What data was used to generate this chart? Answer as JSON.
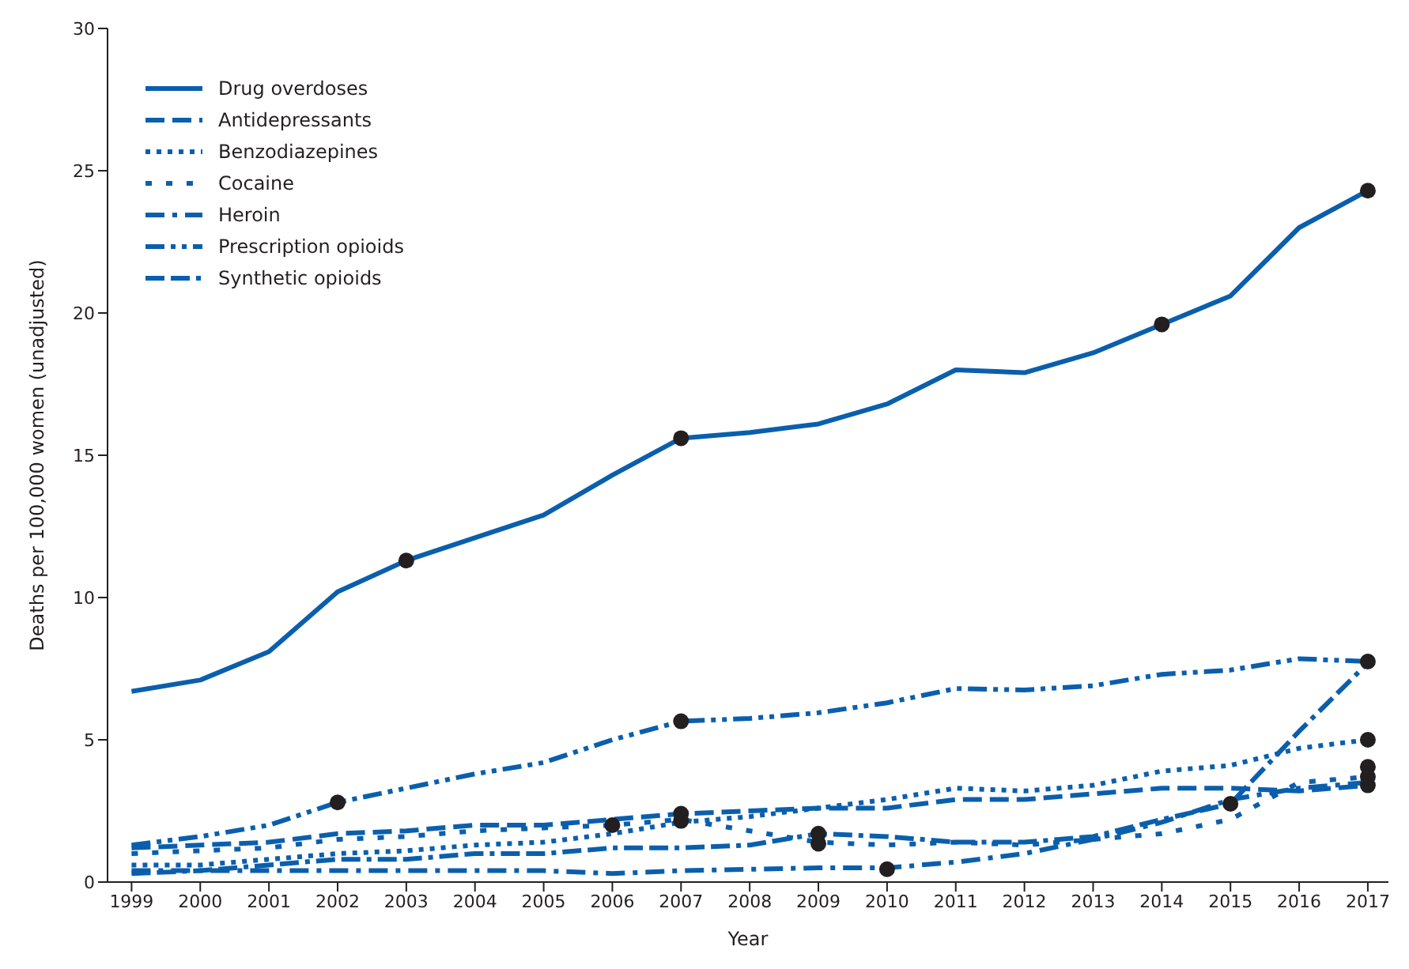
{
  "chart_data": {
    "type": "line",
    "xlabel": "Year",
    "ylabel": "Deaths per 100,000 women (unadjusted)",
    "x": [
      1999,
      2000,
      2001,
      2002,
      2003,
      2004,
      2005,
      2006,
      2007,
      2008,
      2009,
      2010,
      2011,
      2012,
      2013,
      2014,
      2015,
      2016,
      2017
    ],
    "xlim": [
      1998.65,
      2017.3
    ],
    "xticks": [
      1999,
      2000,
      2001,
      2002,
      2003,
      2004,
      2005,
      2006,
      2007,
      2008,
      2009,
      2010,
      2011,
      2012,
      2013,
      2014,
      2015,
      2016,
      2017
    ],
    "ylim": [
      0,
      30
    ],
    "yticks": [
      0,
      5,
      10,
      15,
      20,
      25,
      30
    ],
    "legend": "top left",
    "marker": "none",
    "series": [
      {
        "name": "Drug overdoses",
        "color": "#0a5fad",
        "line_style": "solid",
        "values": [
          6.7,
          7.1,
          8.1,
          10.2,
          11.3,
          12.1,
          12.9,
          14.3,
          15.6,
          15.8,
          16.1,
          16.8,
          18.0,
          17.9,
          18.6,
          19.6,
          20.6,
          23.0,
          24.3
        ]
      },
      {
        "name": "Antidepressants",
        "color": "#0a5fad",
        "line_style": "dashed",
        "values": [
          1.2,
          1.3,
          1.4,
          1.7,
          1.8,
          2.0,
          2.0,
          2.2,
          2.4,
          2.5,
          2.6,
          2.6,
          2.9,
          2.9,
          3.1,
          3.3,
          3.3,
          3.2,
          3.4
        ]
      },
      {
        "name": "Benzodiazepines",
        "color": "#0a5fad",
        "line_style": "dotted",
        "values": [
          0.6,
          0.6,
          0.8,
          1.0,
          1.1,
          1.3,
          1.4,
          1.7,
          2.1,
          2.3,
          2.6,
          2.9,
          3.3,
          3.2,
          3.4,
          3.9,
          4.1,
          4.7,
          5.0
        ]
      },
      {
        "name": "Cocaine",
        "color": "#0a5fad",
        "line_style": "loosedotted",
        "values": [
          1.0,
          1.1,
          1.2,
          1.5,
          1.6,
          1.8,
          1.9,
          2.0,
          2.2,
          1.8,
          1.4,
          1.3,
          1.4,
          1.3,
          1.5,
          1.7,
          2.2,
          3.5,
          3.7
        ]
      },
      {
        "name": "Heroin",
        "color": "#0a5fad",
        "line_style": "dashdot",
        "values": [
          0.4,
          0.4,
          0.4,
          0.4,
          0.4,
          0.4,
          0.4,
          0.3,
          0.4,
          0.45,
          0.5,
          0.5,
          0.7,
          1.0,
          1.5,
          2.1,
          2.9,
          3.3,
          3.5
        ]
      },
      {
        "name": "Prescription opioids",
        "color": "#0a5fad",
        "line_style": "dashdotdot",
        "values": [
          1.3,
          1.6,
          2.0,
          2.8,
          3.3,
          3.8,
          4.2,
          5.0,
          5.65,
          5.75,
          5.95,
          6.3,
          6.8,
          6.75,
          6.9,
          7.3,
          7.45,
          7.85,
          7.75
        ]
      },
      {
        "name": "Synthetic opioids",
        "color": "#0a5fad",
        "line_style": "dashdashdot",
        "values": [
          0.3,
          0.4,
          0.6,
          0.8,
          0.8,
          1.0,
          1.0,
          1.2,
          1.2,
          1.3,
          1.7,
          1.6,
          1.4,
          1.4,
          1.6,
          2.2,
          2.75,
          5.3,
          7.7
        ]
      },
      {
        "type": "scatter",
        "color": "#231f20",
        "marker": "circle",
        "x": [
          2003,
          2007,
          2014,
          2017,
          2002,
          2007,
          2017,
          2006,
          2007,
          2007,
          2009,
          2009,
          2010,
          2015,
          2017,
          2017,
          2017,
          2017
        ],
        "values": [
          11.3,
          15.6,
          19.6,
          24.3,
          2.8,
          5.65,
          7.75,
          2.0,
          2.4,
          2.15,
          1.7,
          1.35,
          0.45,
          2.75,
          5.0,
          4.05,
          3.7,
          3.4
        ]
      }
    ]
  }
}
